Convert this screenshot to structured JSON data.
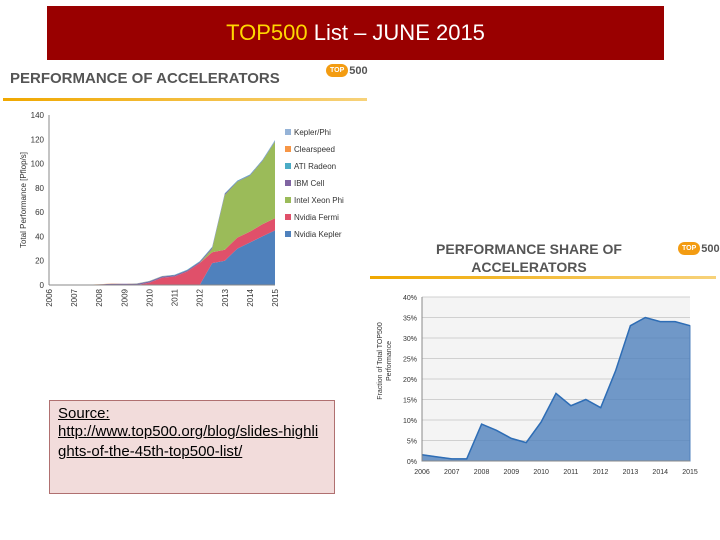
{
  "slide": {
    "title_part1": "TOP500",
    "title_part2": " List – JUNE 2015"
  },
  "chart_data": [
    {
      "type": "area",
      "title": "PERFORMANCE OF ACCELERATORS",
      "logo_badge": "TOP",
      "logo_number": "500",
      "xlabel": "",
      "ylabel": "Total Performance [Pflop/s]",
      "ylim": [
        0,
        140
      ],
      "yticks": [
        "0",
        "20",
        "40",
        "60",
        "80",
        "100",
        "120",
        "140"
      ],
      "categories": [
        "2006",
        "2007",
        "2008",
        "2009",
        "2010",
        "2011",
        "2012",
        "2013",
        "2014",
        "2015"
      ],
      "x": [
        2006.0,
        2006.5,
        2007.0,
        2007.5,
        2008.0,
        2008.5,
        2009.0,
        2009.5,
        2010.0,
        2010.5,
        2011.0,
        2011.5,
        2012.0,
        2012.5,
        2013.0,
        2013.5,
        2014.0,
        2014.5,
        2015.0
      ],
      "grid": false,
      "legend": "right",
      "series": [
        {
          "name": "Nvidia Kepler",
          "color": "#4f81bd",
          "values": [
            0,
            0,
            0,
            0,
            0,
            0,
            0,
            0,
            0,
            0,
            0,
            0,
            0,
            18,
            20,
            30,
            35,
            40,
            45
          ]
        },
        {
          "name": "Nvidia Fermi",
          "color": "#e0506a",
          "values": [
            0,
            0,
            0,
            0,
            0,
            0,
            0,
            0,
            2,
            6,
            7,
            11,
            18,
            9,
            9,
            9,
            9,
            10,
            10
          ]
        },
        {
          "name": "Intel Xeon Phi",
          "color": "#9bbb59",
          "values": [
            0,
            0,
            0,
            0,
            0,
            0,
            0,
            0,
            0,
            0,
            0,
            0,
            0,
            3,
            45,
            46,
            46,
            52,
            63
          ]
        },
        {
          "name": "IBM Cell",
          "color": "#8064a2",
          "values": [
            0,
            0,
            0,
            0,
            0.5,
            1,
            1,
            1,
            1,
            1,
            1,
            1,
            1,
            1,
            1,
            0.5,
            0.5,
            0.5,
            0.5
          ]
        },
        {
          "name": "ATI Radeon",
          "color": "#4bacc6",
          "values": [
            0,
            0,
            0,
            0,
            0,
            0,
            0,
            0.2,
            0.3,
            0.3,
            0.5,
            0.5,
            0.5,
            0.5,
            0.5,
            0.5,
            0.5,
            0.5,
            0.5
          ]
        },
        {
          "name": "Clearspeed",
          "color": "#f79646",
          "values": [
            0,
            0.2,
            0.2,
            0.2,
            0.2,
            0.2,
            0.1,
            0.1,
            0.1,
            0.1,
            0,
            0,
            0,
            0,
            0,
            0,
            0,
            0,
            0
          ]
        },
        {
          "name": "Kepler/Phi",
          "color": "#95b3d7",
          "values": [
            0,
            0,
            0,
            0,
            0,
            0,
            0,
            0,
            0,
            0,
            0,
            0,
            0,
            0,
            0,
            0,
            0,
            0,
            0.5
          ]
        }
      ]
    },
    {
      "type": "area",
      "title": "PERFORMANCE SHARE OF ACCELERATORS",
      "logo_badge": "TOP",
      "logo_number": "500",
      "xlabel": "",
      "ylabel": "Fraction of Total TOP500 Performance",
      "ylim": [
        0,
        40
      ],
      "yticks": [
        "0%",
        "5%",
        "10%",
        "15%",
        "20%",
        "25%",
        "30%",
        "35%",
        "40%"
      ],
      "categories": [
        "2006",
        "2007",
        "2008",
        "2009",
        "2010",
        "2011",
        "2012",
        "2013",
        "2014",
        "2015"
      ],
      "x": [
        2006.0,
        2006.5,
        2007.0,
        2007.5,
        2008.0,
        2008.5,
        2009.0,
        2009.5,
        2010.0,
        2010.5,
        2011.0,
        2011.5,
        2012.0,
        2012.5,
        2013.0,
        2013.5,
        2014.0,
        2014.5,
        2015.0
      ],
      "grid": true,
      "legend": "none",
      "series": [
        {
          "name": "",
          "color": "#4f81bd",
          "values": [
            1.5,
            1.0,
            0.5,
            0.5,
            9,
            7.5,
            5.5,
            4.5,
            9.5,
            16.5,
            13.5,
            15,
            13,
            22,
            33,
            35,
            34,
            34,
            33
          ]
        }
      ]
    }
  ],
  "source": {
    "label": "Source:",
    "url": "http://www.top500.org/blog/slides-highlights-of-the-45th-top500-list/"
  }
}
